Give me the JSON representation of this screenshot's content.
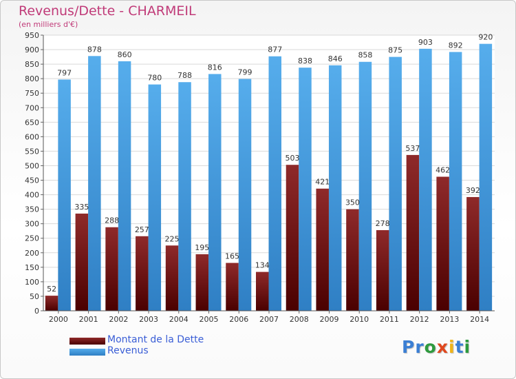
{
  "header": {
    "title": "Revenus/Dette - CHARMEIL",
    "subtitle": "(en milliers d'€)"
  },
  "legend": {
    "items": [
      {
        "label": "Montant de la Dette",
        "color": "#7a1515"
      },
      {
        "label": "Revenus",
        "color": "#4aa3e6"
      }
    ]
  },
  "logo": {
    "letters": [
      {
        "ch": "P",
        "color": "#3b7fd4"
      },
      {
        "ch": "r",
        "color": "#3b7fd4"
      },
      {
        "ch": "o",
        "color": "#2e9a3e"
      },
      {
        "ch": "x",
        "color": "#e0481e"
      },
      {
        "ch": "i",
        "color": "#f0b419"
      },
      {
        "ch": "t",
        "color": "#3b7fd4"
      },
      {
        "ch": "i",
        "color": "#2e9a3e"
      }
    ]
  },
  "chart_data": {
    "type": "bar",
    "title": "Revenus/Dette - CHARMEIL",
    "subtitle": "(en milliers d'€)",
    "categories": [
      "2000",
      "2001",
      "2002",
      "2003",
      "2004",
      "2005",
      "2006",
      "2007",
      "2008",
      "2009",
      "2010",
      "2011",
      "2012",
      "2013",
      "2014"
    ],
    "series": [
      {
        "name": "Montant de la Dette",
        "color": "#7a1515",
        "values": [
          52,
          335,
          288,
          257,
          225,
          195,
          165,
          134,
          503,
          421,
          350,
          278,
          537,
          462,
          392
        ]
      },
      {
        "name": "Revenus",
        "color": "#4aa3e6",
        "values": [
          797,
          878,
          860,
          780,
          788,
          816,
          799,
          877,
          838,
          846,
          858,
          875,
          903,
          892,
          920
        ]
      }
    ],
    "ylim": [
      0,
      950
    ],
    "ytick_step": 50,
    "grid": true,
    "legend_position": "bottom-left"
  }
}
